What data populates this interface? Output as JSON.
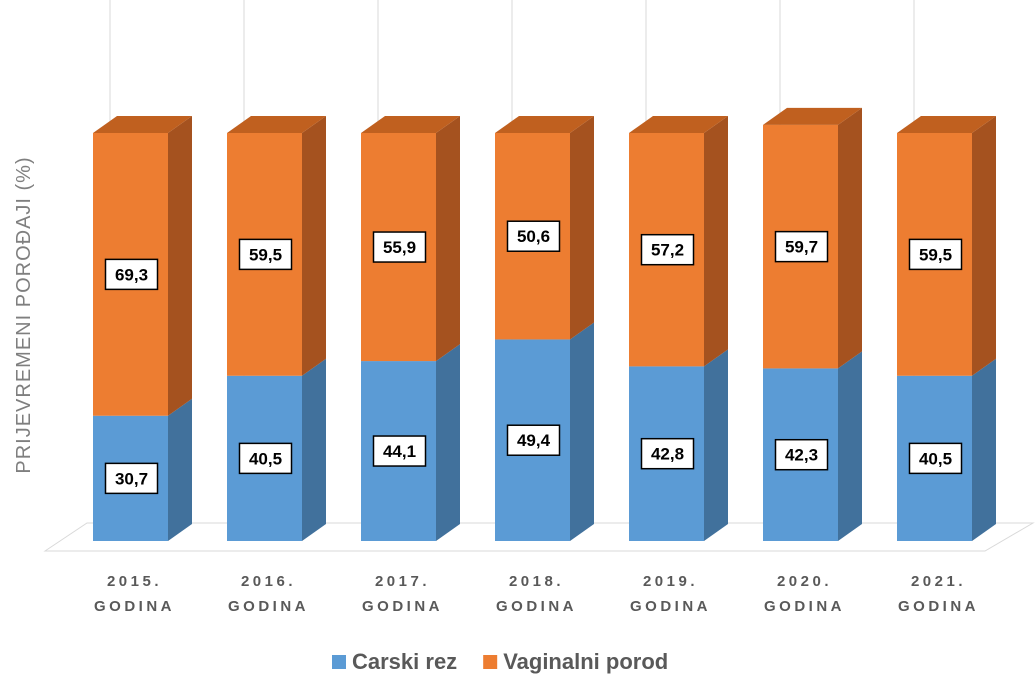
{
  "chart_data": {
    "type": "bar",
    "stacked": true,
    "three_d": true,
    "ylabel": "PRIJEVREMENI POROĐAJI (%)",
    "categories": [
      [
        "2015.",
        "GODINA"
      ],
      [
        "2016.",
        "GODINA"
      ],
      [
        "2017.",
        "GODINA"
      ],
      [
        "2018.",
        "GODINA"
      ],
      [
        "2019.",
        "GODINA"
      ],
      [
        "2020.",
        "GODINA"
      ],
      [
        "2021.",
        "GODINA"
      ]
    ],
    "series": [
      {
        "name": "Carski rez",
        "color": "#5b9bd5",
        "side_color": "#41719c",
        "top_color": "#4a86be",
        "values": [
          30.7,
          40.5,
          44.1,
          49.4,
          42.8,
          42.3,
          40.5
        ],
        "labels": [
          "30,7",
          "40,5",
          "44,1",
          "49,4",
          "42,8",
          "42,3",
          "40,5"
        ]
      },
      {
        "name": "Vaginalni porod",
        "color": "#ed7d31",
        "side_color": "#a5521f",
        "top_color": "#c0601f",
        "values": [
          69.3,
          59.5,
          55.9,
          50.6,
          57.2,
          59.7,
          59.5
        ],
        "labels": [
          "69,3",
          "59,5",
          "55,9",
          "50,6",
          "57,2",
          "59,7",
          "59,5"
        ]
      }
    ],
    "ylim": [
      0,
      100
    ],
    "grid": "vertical",
    "legend_position": "bottom"
  }
}
